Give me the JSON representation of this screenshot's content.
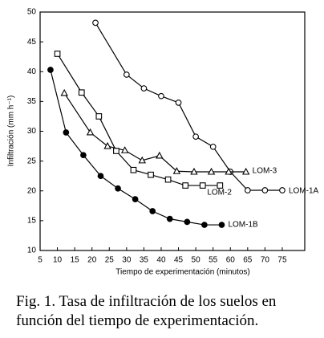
{
  "chart_data": {
    "type": "line",
    "x_label": "Tiempo de experimentación (minutos)",
    "y_label": "Infiltración (mm h⁻¹)",
    "xlim": [
      5,
      81.5
    ],
    "ylim": [
      10,
      50
    ],
    "xticks": [
      5,
      10,
      15,
      20,
      25,
      30,
      35,
      40,
      45,
      50,
      55,
      60,
      65,
      70,
      75
    ],
    "yticks": [
      10,
      15,
      20,
      25,
      30,
      35,
      40,
      45,
      50
    ],
    "grid": false,
    "series": [
      {
        "name": "LOM-1A",
        "color": "#000000",
        "marker": "open-circle",
        "x": [
          21,
          30,
          35,
          40,
          45,
          50,
          55,
          60,
          65,
          70,
          75
        ],
        "values": [
          48.2,
          39.5,
          37.2,
          35.9,
          34.8,
          29.1,
          27.4,
          23.2,
          20.1,
          20.1,
          20.1
        ]
      },
      {
        "name": "LOM-3",
        "color": "#000000",
        "marker": "open-triangle",
        "x": [
          12,
          19.5,
          24.5,
          29.5,
          34.5,
          39.5,
          44.5,
          49.5,
          54.5,
          59.5,
          64.5
        ],
        "values": [
          36.4,
          29.8,
          27.5,
          26.8,
          25.1,
          25.9,
          23.3,
          23.2,
          23.2,
          23.2,
          23.2
        ]
      },
      {
        "name": "LOM-2",
        "color": "#000000",
        "marker": "open-square",
        "x": [
          10,
          17,
          22,
          27,
          32,
          37,
          42,
          47,
          52,
          57
        ],
        "values": [
          43,
          36.5,
          32.5,
          26.7,
          23.5,
          22.7,
          21.9,
          20.9,
          20.9,
          20.9
        ]
      },
      {
        "name": "LOM-1B",
        "color": "#000000",
        "marker": "filled-circle",
        "x": [
          8,
          12.5,
          17.5,
          22.5,
          27.5,
          32.5,
          37.5,
          42.5,
          47.5,
          52.5,
          57.5
        ],
        "values": [
          40.3,
          29.8,
          26,
          22.5,
          20.4,
          18.6,
          16.6,
          15.3,
          14.8,
          14.3,
          14.3
        ]
      }
    ]
  },
  "caption": "Fig. 1. Tasa de infiltración de los suelos en función del tiempo de experimentación."
}
